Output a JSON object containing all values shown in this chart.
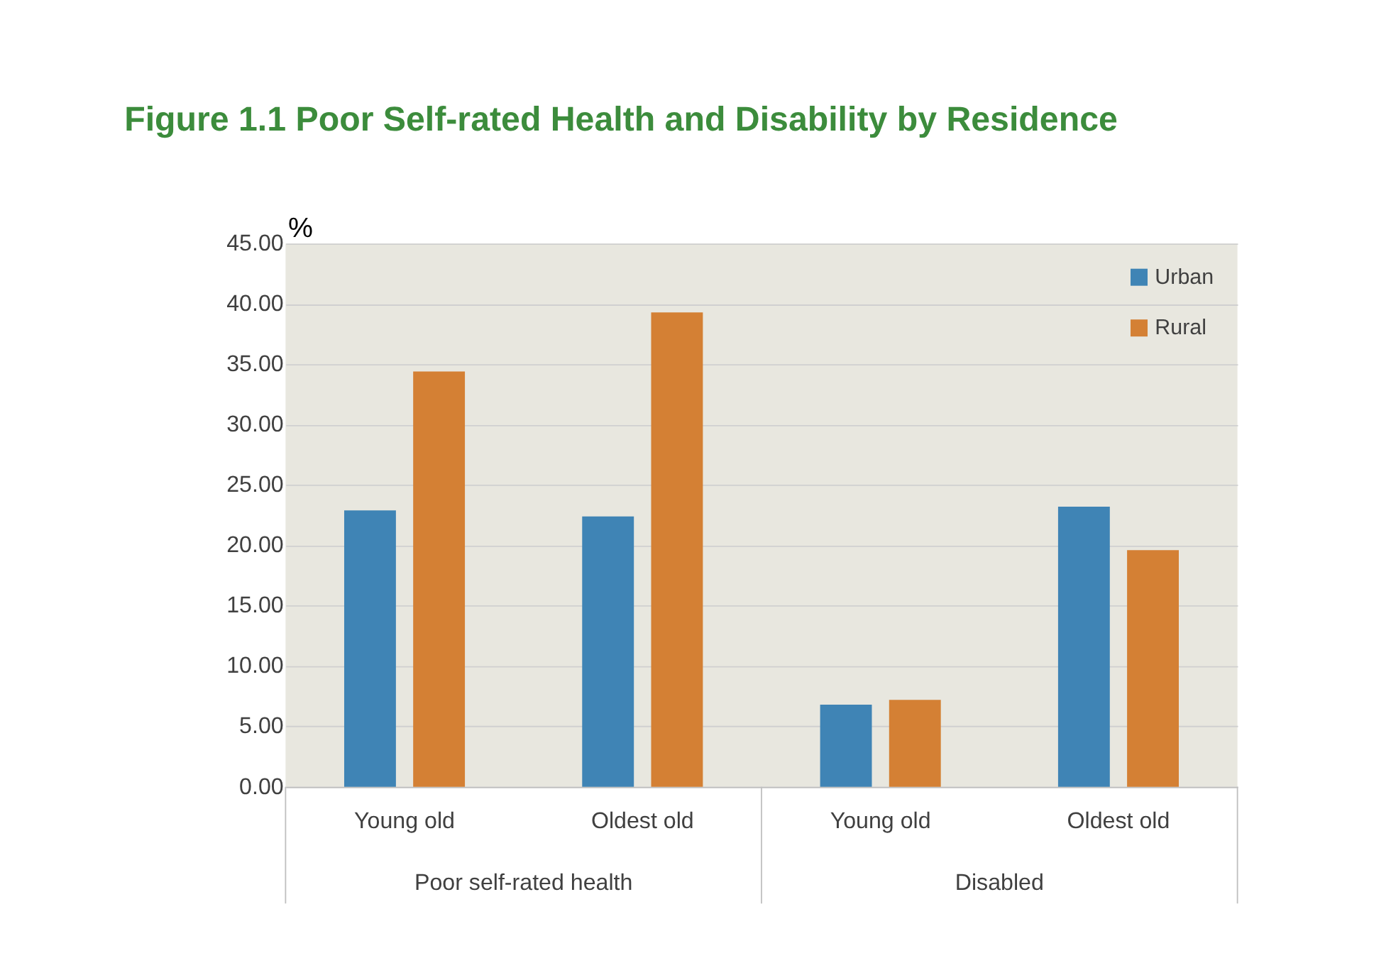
{
  "chart_data": {
    "type": "bar",
    "title": "Figure 1.1 Poor Self-rated Health and Disability by Residence",
    "ylabel": "%",
    "categories": [
      "Young old",
      "Oldest old",
      "Young old",
      "Oldest old"
    ],
    "annotations": [
      "Poor self-rated health",
      "Disabled"
    ],
    "series": [
      {
        "name": "Urban",
        "color": "#3f84b5",
        "values": [
          22.9,
          22.4,
          6.8,
          23.2
        ]
      },
      {
        "name": "Rural",
        "color": "#d48034",
        "values": [
          34.4,
          39.3,
          7.2,
          19.6
        ]
      }
    ],
    "ylim": [
      0,
      45
    ],
    "yticks": [
      {
        "value": 0,
        "label": "0.00"
      },
      {
        "value": 5,
        "label": "5.00"
      },
      {
        "value": 10,
        "label": "10.00"
      },
      {
        "value": 15,
        "label": "15.00"
      },
      {
        "value": 20,
        "label": "20.00"
      },
      {
        "value": 25,
        "label": "25.00"
      },
      {
        "value": 30,
        "label": "30.00"
      },
      {
        "value": 35,
        "label": "35.00"
      },
      {
        "value": 40,
        "label": "40.00"
      },
      {
        "value": 45,
        "label": "45.00"
      }
    ],
    "grid": "y",
    "legend": "top right"
  }
}
